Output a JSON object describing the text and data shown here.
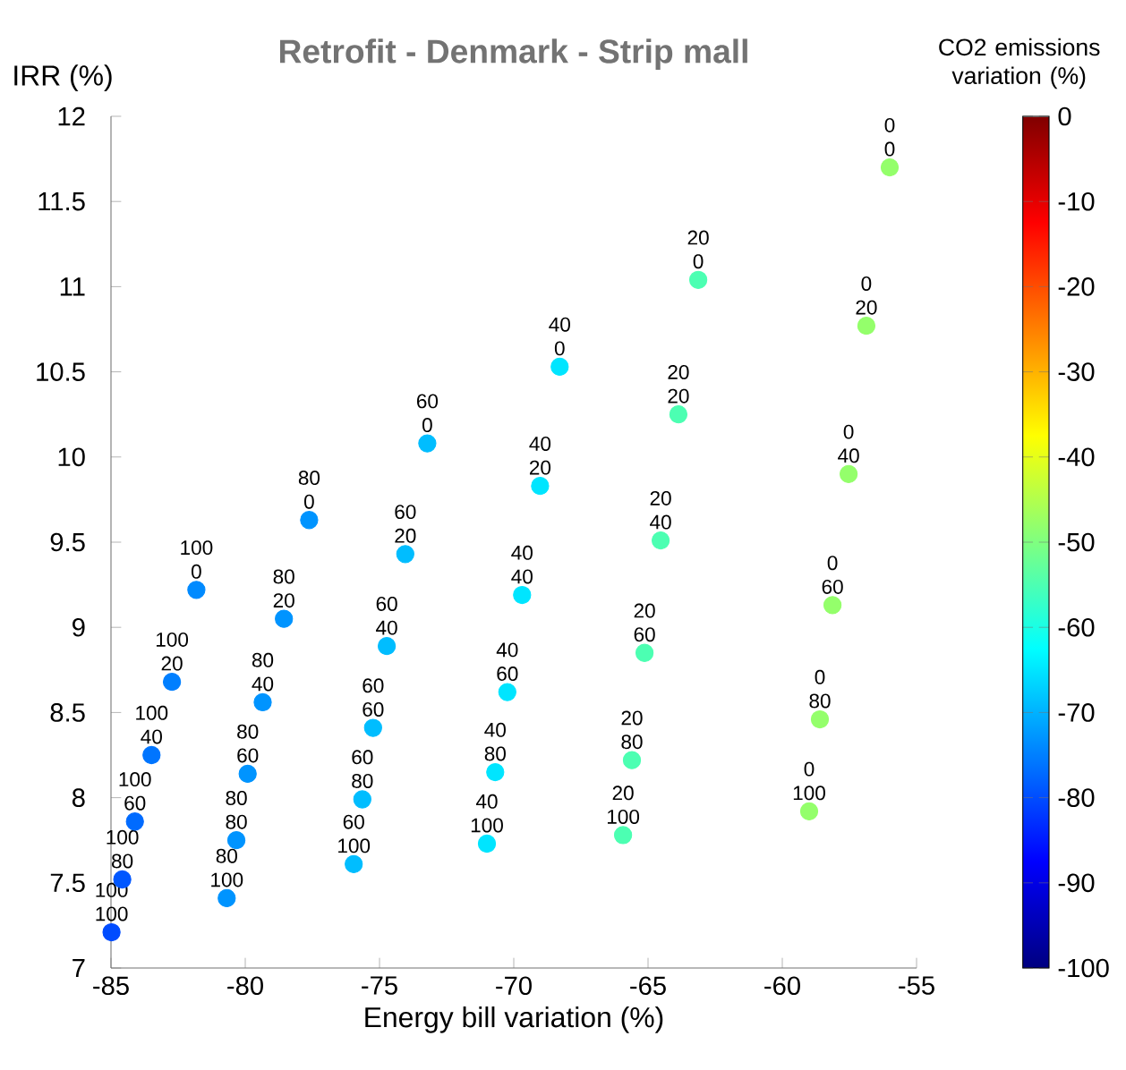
{
  "chart_data": {
    "type": "scatter",
    "title": "Retrofit - Denmark - Strip mall",
    "xlabel": "Energy bill variation (%)",
    "ylabel": "IRR (%)",
    "clabel": "CO2 emissions variation (%)",
    "xlim": [
      -85,
      -55
    ],
    "xticks": [
      -85,
      -80,
      -75,
      -70,
      -65,
      -60,
      -55
    ],
    "ylim": [
      7,
      12
    ],
    "yticks": [
      7,
      7.5,
      8,
      8.5,
      9,
      9.5,
      10,
      10.5,
      11,
      11.5,
      12
    ],
    "clim": [
      -100,
      0
    ],
    "cticks": [
      -100,
      -90,
      -80,
      -70,
      -60,
      -50,
      -40,
      -30,
      -20,
      -10,
      0
    ],
    "marker": "circle",
    "x": [
      -81.82,
      -82.73,
      -83.49,
      -84.11,
      -84.58,
      -84.98,
      -77.62,
      -78.56,
      -79.35,
      -79.91,
      -80.33,
      -80.69,
      -73.22,
      -74.04,
      -74.73,
      -75.24,
      -75.64,
      -75.96,
      -68.29,
      -69.02,
      -69.69,
      -70.24,
      -70.69,
      -71.0,
      -63.13,
      -63.87,
      -64.53,
      -65.13,
      -65.6,
      -65.93,
      -56.0,
      -56.87,
      -57.53,
      -58.13,
      -58.6,
      -59.0
    ],
    "values": [
      9.22,
      8.68,
      8.25,
      7.86,
      7.52,
      7.21,
      9.63,
      9.05,
      8.56,
      8.14,
      7.75,
      7.41,
      10.08,
      9.43,
      8.89,
      8.41,
      7.99,
      7.61,
      10.53,
      9.83,
      9.19,
      8.62,
      8.15,
      7.73,
      11.04,
      10.25,
      9.51,
      8.85,
      8.22,
      7.78,
      11.7,
      10.77,
      9.9,
      9.13,
      8.46,
      7.92
    ],
    "cvalues": [
      -74,
      -75,
      -76,
      -77,
      -79,
      -80,
      -73,
      -73,
      -73,
      -73,
      -73,
      -73,
      -69,
      -69,
      -69,
      -69,
      -69,
      -69,
      -65,
      -65,
      -65,
      -65,
      -65,
      -65,
      -55,
      -55,
      -55,
      -55,
      -55,
      -55,
      -48,
      -48,
      -48,
      -48,
      -48,
      -48
    ],
    "annotations": [
      {
        "text": "100",
        "x": -81.82,
        "y": 9.22
      },
      {
        "text": "0",
        "x": -81.82,
        "y": 9.22
      },
      {
        "text": "100",
        "x": -82.73,
        "y": 8.68
      },
      {
        "text": "20",
        "x": -82.73,
        "y": 8.68
      },
      {
        "text": "100",
        "x": -83.49,
        "y": 8.25
      },
      {
        "text": "40",
        "x": -83.49,
        "y": 8.25
      },
      {
        "text": "100",
        "x": -84.11,
        "y": 7.86
      },
      {
        "text": "60",
        "x": -84.11,
        "y": 7.86
      },
      {
        "text": "100",
        "x": -84.58,
        "y": 7.52
      },
      {
        "text": "80",
        "x": -84.58,
        "y": 7.52
      },
      {
        "text": "100",
        "x": -84.98,
        "y": 7.21
      },
      {
        "text": "100",
        "x": -84.98,
        "y": 7.21
      },
      {
        "text": "80",
        "x": -77.62,
        "y": 9.63
      },
      {
        "text": "0",
        "x": -77.62,
        "y": 9.63
      },
      {
        "text": "80",
        "x": -78.56,
        "y": 9.05
      },
      {
        "text": "20",
        "x": -78.56,
        "y": 9.05
      },
      {
        "text": "80",
        "x": -79.35,
        "y": 8.56
      },
      {
        "text": "40",
        "x": -79.35,
        "y": 8.56
      },
      {
        "text": "80",
        "x": -79.91,
        "y": 8.14
      },
      {
        "text": "60",
        "x": -79.91,
        "y": 8.14
      },
      {
        "text": "80",
        "x": -80.33,
        "y": 7.75
      },
      {
        "text": "80",
        "x": -80.33,
        "y": 7.75
      },
      {
        "text": "80",
        "x": -80.69,
        "y": 7.41
      },
      {
        "text": "100",
        "x": -80.69,
        "y": 7.41
      },
      {
        "text": "60",
        "x": -73.22,
        "y": 10.08
      },
      {
        "text": "0",
        "x": -73.22,
        "y": 10.08
      },
      {
        "text": "60",
        "x": -74.04,
        "y": 9.43
      },
      {
        "text": "20",
        "x": -74.04,
        "y": 9.43
      },
      {
        "text": "60",
        "x": -74.73,
        "y": 8.89
      },
      {
        "text": "40",
        "x": -74.73,
        "y": 8.89
      },
      {
        "text": "60",
        "x": -75.24,
        "y": 8.41
      },
      {
        "text": "60",
        "x": -75.24,
        "y": 8.41
      },
      {
        "text": "60",
        "x": -75.64,
        "y": 7.99
      },
      {
        "text": "80",
        "x": -75.64,
        "y": 7.99
      },
      {
        "text": "60",
        "x": -75.96,
        "y": 7.61
      },
      {
        "text": "100",
        "x": -75.96,
        "y": 7.61
      },
      {
        "text": "40",
        "x": -68.29,
        "y": 10.53
      },
      {
        "text": "0",
        "x": -68.29,
        "y": 10.53
      },
      {
        "text": "40",
        "x": -69.02,
        "y": 9.83
      },
      {
        "text": "20",
        "x": -69.02,
        "y": 9.83
      },
      {
        "text": "40",
        "x": -69.69,
        "y": 9.19
      },
      {
        "text": "40",
        "x": -69.69,
        "y": 9.19
      },
      {
        "text": "40",
        "x": -70.24,
        "y": 8.62
      },
      {
        "text": "60",
        "x": -70.24,
        "y": 8.62
      },
      {
        "text": "40",
        "x": -70.69,
        "y": 8.15
      },
      {
        "text": "80",
        "x": -70.69,
        "y": 8.15
      },
      {
        "text": "40",
        "x": -71.0,
        "y": 7.73
      },
      {
        "text": "100",
        "x": -71.0,
        "y": 7.73
      },
      {
        "text": "20",
        "x": -63.13,
        "y": 11.04
      },
      {
        "text": "0",
        "x": -63.13,
        "y": 11.04
      },
      {
        "text": "20",
        "x": -63.87,
        "y": 10.25
      },
      {
        "text": "20",
        "x": -63.87,
        "y": 10.25
      },
      {
        "text": "20",
        "x": -64.53,
        "y": 9.51
      },
      {
        "text": "40",
        "x": -64.53,
        "y": 9.51
      },
      {
        "text": "20",
        "x": -65.13,
        "y": 8.85
      },
      {
        "text": "60",
        "x": -65.13,
        "y": 8.85
      },
      {
        "text": "20",
        "x": -65.6,
        "y": 8.22
      },
      {
        "text": "80",
        "x": -65.6,
        "y": 8.22
      },
      {
        "text": "20",
        "x": -65.93,
        "y": 7.78
      },
      {
        "text": "100",
        "x": -65.93,
        "y": 7.78
      },
      {
        "text": "0",
        "x": -56.0,
        "y": 11.7
      },
      {
        "text": "0",
        "x": -56.0,
        "y": 11.7
      },
      {
        "text": "0",
        "x": -56.87,
        "y": 10.77
      },
      {
        "text": "20",
        "x": -56.87,
        "y": 10.77
      },
      {
        "text": "0",
        "x": -57.53,
        "y": 9.9
      },
      {
        "text": "40",
        "x": -57.53,
        "y": 9.9
      },
      {
        "text": "0",
        "x": -58.13,
        "y": 9.13
      },
      {
        "text": "60",
        "x": -58.13,
        "y": 9.13
      },
      {
        "text": "0",
        "x": -58.6,
        "y": 8.46
      },
      {
        "text": "80",
        "x": -58.6,
        "y": 8.46
      },
      {
        "text": "0",
        "x": -59.0,
        "y": 7.92
      },
      {
        "text": "100",
        "x": -59.0,
        "y": 7.92
      }
    ]
  }
}
